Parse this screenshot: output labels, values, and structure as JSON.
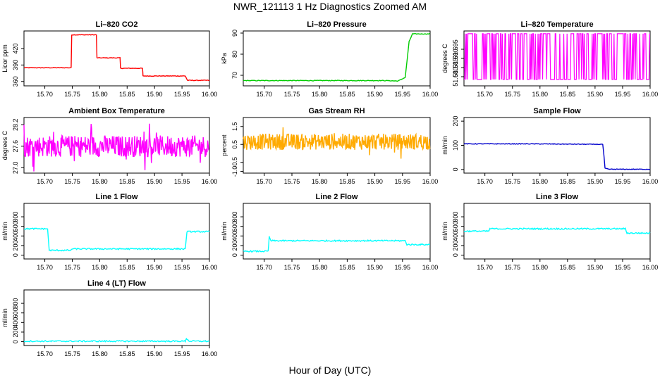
{
  "figure": {
    "title": "NWR_121113  1 Hz Diagnostics Zoomed AM",
    "xlabel": "Hour of Day (UTC)"
  },
  "chart_data": [
    {
      "type": "line",
      "id": "co2",
      "title": "Li–820 CO2",
      "ylabel": "Licor ppm",
      "color": "#ff0000",
      "xlim": [
        15.662,
        16.0
      ],
      "xticks": [
        15.7,
        15.75,
        15.8,
        15.85,
        15.9,
        15.95,
        16.0
      ],
      "ylim": [
        352,
        452
      ],
      "yticks": [
        360,
        390,
        420
      ],
      "series": [
        {
          "x": [
            15.662,
            15.748,
            15.749,
            15.794,
            15.795,
            15.837,
            15.838,
            15.878,
            15.879,
            15.956,
            15.96,
            16.0
          ],
          "y": [
            385,
            385,
            445,
            445,
            403,
            403,
            384,
            384,
            370,
            370,
            362,
            362
          ]
        }
      ]
    },
    {
      "type": "line",
      "id": "pressure",
      "title": "Li–820 Pressure",
      "ylabel": "kPa",
      "color": "#00cc00",
      "xlim": [
        15.662,
        16.0
      ],
      "xticks": [
        15.7,
        15.75,
        15.8,
        15.85,
        15.9,
        15.95,
        16.0
      ],
      "ylim": [
        65,
        91
      ],
      "yticks": [
        70,
        80,
        90
      ],
      "series": [
        {
          "x": [
            15.662,
            15.918,
            15.942,
            15.955,
            15.962,
            15.968,
            16.0
          ],
          "y": [
            67.5,
            67.5,
            67.3,
            69,
            86,
            89.6,
            89.6
          ]
        }
      ]
    },
    {
      "type": "line",
      "id": "licor-temp",
      "title": "Li–820 Temperature",
      "ylabel": "degrees C",
      "color": "#ff00ff",
      "xlim": [
        15.662,
        16.0
      ],
      "xticks": [
        15.7,
        15.75,
        15.8,
        15.85,
        15.9,
        15.95,
        16.0
      ],
      "ylim": [
        51.675,
        51.705
      ],
      "yticks": [
        51.68,
        51.685,
        51.69,
        51.695
      ],
      "series": [
        {
          "x": [
            15.662,
            16.0
          ],
          "y": [
            51.6785,
            51.7035
          ]
        }
      ]
    },
    {
      "type": "line",
      "id": "box-temp",
      "title": "Ambient Box Temperature",
      "ylabel": "degrees C",
      "color": "#ff00ff",
      "xlim": [
        15.662,
        16.0
      ],
      "xticks": [
        15.7,
        15.75,
        15.8,
        15.85,
        15.9,
        15.95,
        16.0
      ],
      "ylim": [
        26.85,
        28.4
      ],
      "yticks": [
        27.0,
        27.6,
        28.2
      ],
      "series": [
        {
          "x": [
            15.662,
            16.0
          ],
          "y": [
            27.3,
            27.9
          ]
        }
      ]
    },
    {
      "type": "line",
      "id": "rh",
      "title": "Gas Stream RH",
      "ylabel": "percent",
      "color": "#ffaa00",
      "xlim": [
        15.662,
        16.0
      ],
      "xticks": [
        15.7,
        15.75,
        15.8,
        15.85,
        15.9,
        15.95,
        16.0
      ],
      "ylim": [
        -1.1,
        2.0
      ],
      "yticks": [
        -1.0,
        -0.5,
        0.5,
        1.5
      ],
      "series": [
        {
          "x": [
            15.662,
            16.0
          ],
          "y": [
            0.2,
            1.1
          ]
        }
      ]
    },
    {
      "type": "line",
      "id": "sample-flow",
      "title": "Sample Flow",
      "ylabel": "ml/min",
      "color": "#0000cc",
      "xlim": [
        15.662,
        16.0
      ],
      "xticks": [
        15.7,
        15.75,
        15.8,
        15.85,
        15.9,
        15.95,
        16.0
      ],
      "ylim": [
        -15,
        215
      ],
      "yticks": [
        0,
        100,
        200
      ],
      "series": [
        {
          "x": [
            15.662,
            15.78,
            15.914,
            15.916,
            15.918,
            15.925,
            16.0
          ],
          "y": [
            106,
            106,
            104,
            60,
            5,
            1,
            1
          ]
        }
      ]
    },
    {
      "type": "line",
      "id": "line1",
      "title": "Line 1 Flow",
      "ylabel": "ml/min",
      "color": "#00ffff",
      "xlim": [
        15.662,
        16.0
      ],
      "xticks": [
        15.7,
        15.75,
        15.8,
        15.85,
        15.9,
        15.95,
        16.0
      ],
      "ylim": [
        -80,
        1080
      ],
      "yticks": [
        0,
        200,
        400,
        600,
        800
      ],
      "series": [
        {
          "x": [
            15.662,
            15.705,
            15.708,
            15.748,
            15.749,
            15.956,
            15.959,
            16.0
          ],
          "y": [
            550,
            550,
            100,
            100,
            130,
            130,
            490,
            490
          ]
        }
      ]
    },
    {
      "type": "line",
      "id": "line2",
      "title": "Line 2 Flow",
      "ylabel": "ml/min",
      "color": "#00ffff",
      "xlim": [
        15.662,
        16.0
      ],
      "xticks": [
        15.7,
        15.75,
        15.8,
        15.85,
        15.9,
        15.95,
        16.0
      ],
      "ylim": [
        -80,
        1080
      ],
      "yticks": [
        0,
        200,
        400,
        600,
        800
      ],
      "series": [
        {
          "x": [
            15.662,
            15.707,
            15.709,
            15.712,
            15.955,
            15.958,
            16.0
          ],
          "y": [
            80,
            80,
            380,
            300,
            300,
            220,
            220
          ]
        }
      ]
    },
    {
      "type": "line",
      "id": "line3",
      "title": "Line 3 Flow",
      "ylabel": "ml/min",
      "color": "#00ffff",
      "xlim": [
        15.662,
        16.0
      ],
      "xticks": [
        15.7,
        15.75,
        15.8,
        15.85,
        15.9,
        15.95,
        16.0
      ],
      "ylim": [
        -80,
        1080
      ],
      "yticks": [
        0,
        200,
        400,
        600,
        800
      ],
      "series": [
        {
          "x": [
            15.662,
            15.707,
            15.709,
            15.955,
            15.958,
            16.0
          ],
          "y": [
            500,
            500,
            550,
            550,
            460,
            460
          ]
        }
      ]
    },
    {
      "type": "line",
      "id": "line4",
      "title": "Line 4 (LT) Flow",
      "ylabel": "ml/min",
      "color": "#00ffff",
      "xlim": [
        15.662,
        16.0
      ],
      "xticks": [
        15.7,
        15.75,
        15.8,
        15.85,
        15.9,
        15.95,
        16.0
      ],
      "ylim": [
        -80,
        1080
      ],
      "yticks": [
        0,
        200,
        400,
        600,
        800
      ],
      "series": [
        {
          "x": [
            15.662,
            15.956,
            15.958,
            15.961,
            15.964,
            16.0
          ],
          "y": [
            10,
            10,
            70,
            30,
            10,
            10
          ]
        }
      ]
    }
  ]
}
